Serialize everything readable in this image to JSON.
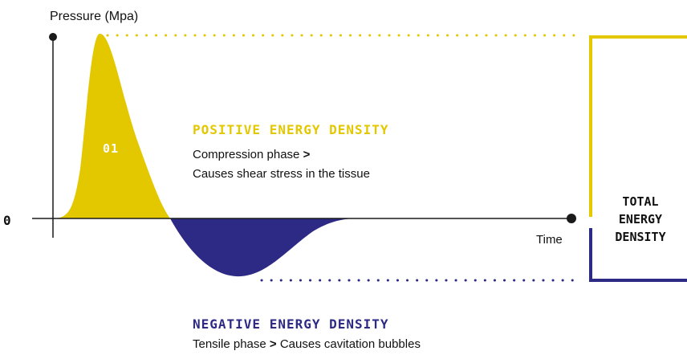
{
  "axis": {
    "y_label": "Pressure (Mpa)",
    "x_label": "Time",
    "zero_label": "0"
  },
  "peak": {
    "label": "01"
  },
  "positive": {
    "title": "POSITIVE ENERGY DENSITY",
    "line1": "Compression phase",
    "line1_marker": ">",
    "line2": "Causes shear stress in the tissue"
  },
  "negative": {
    "title": "NEGATIVE ENERGY DENSITY",
    "text_before": "Tensile phase",
    "marker": ">",
    "text_after": "Causes cavitation bubbles"
  },
  "total": {
    "line1": "TOTAL",
    "line2": "ENERGY",
    "line3": "DENSITY"
  },
  "colors": {
    "positive": "#e3c800",
    "negative": "#2d2a85",
    "axis": "#1a1a1a"
  }
}
